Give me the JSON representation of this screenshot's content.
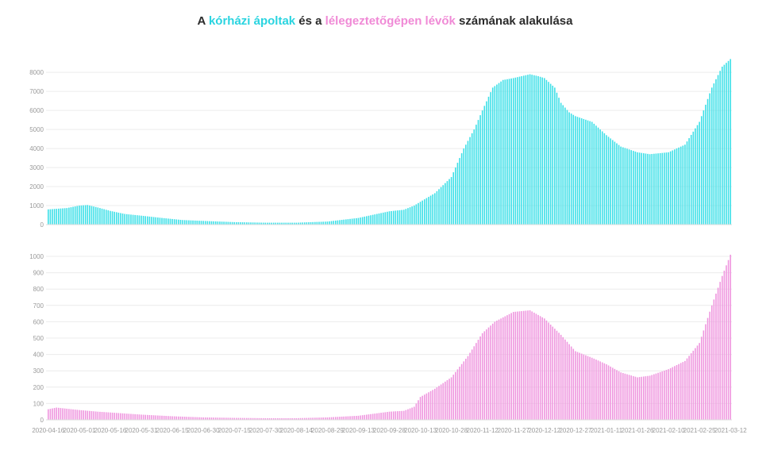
{
  "title": {
    "part1": "A ",
    "highlight1": "kórházi ápoltak",
    "part2": " és a ",
    "highlight2": "lélegeztetőgépen lévők",
    "part3": " számának alakulása"
  },
  "colors": {
    "hospital": "#3fe0e8",
    "ventilator": "#ef97df",
    "grid": "#ececec",
    "tick": "#9a9a9a"
  },
  "chart_data": [
    {
      "type": "bar",
      "series": [
        {
          "name": "kórházi ápoltak",
          "color": "#3fe0e8"
        }
      ],
      "ylim": [
        0,
        8800
      ],
      "yticks": [
        0,
        1000,
        2000,
        3000,
        4000,
        5000,
        6000,
        7000,
        8000
      ],
      "date_range": [
        "2020-04-16",
        "2021-03-12"
      ],
      "grid": true,
      "keypoints": [
        [
          "2020-04-16",
          800
        ],
        [
          "2020-04-25",
          870
        ],
        [
          "2020-05-01",
          1000
        ],
        [
          "2020-05-05",
          1030
        ],
        [
          "2020-05-10",
          900
        ],
        [
          "2020-05-16",
          720
        ],
        [
          "2020-05-23",
          560
        ],
        [
          "2020-05-31",
          470
        ],
        [
          "2020-06-10",
          350
        ],
        [
          "2020-06-20",
          240
        ],
        [
          "2020-07-01",
          190
        ],
        [
          "2020-07-15",
          130
        ],
        [
          "2020-07-30",
          100
        ],
        [
          "2020-08-14",
          100
        ],
        [
          "2020-08-29",
          160
        ],
        [
          "2020-09-13",
          350
        ],
        [
          "2020-09-22",
          560
        ],
        [
          "2020-09-28",
          700
        ],
        [
          "2020-10-05",
          780
        ],
        [
          "2020-10-10",
          1000
        ],
        [
          "2020-10-13",
          1200
        ],
        [
          "2020-10-20",
          1650
        ],
        [
          "2020-10-28",
          2500
        ],
        [
          "2020-11-03",
          4000
        ],
        [
          "2020-11-08",
          5000
        ],
        [
          "2020-11-12",
          6000
        ],
        [
          "2020-11-17",
          7200
        ],
        [
          "2020-11-22",
          7600
        ],
        [
          "2020-11-27",
          7700
        ],
        [
          "2020-12-05",
          7900
        ],
        [
          "2020-12-09",
          7800
        ],
        [
          "2020-12-12",
          7700
        ],
        [
          "2020-12-17",
          7200
        ],
        [
          "2020-12-20",
          6400
        ],
        [
          "2020-12-24",
          5900
        ],
        [
          "2020-12-27",
          5700
        ],
        [
          "2021-01-04",
          5400
        ],
        [
          "2021-01-11",
          4700
        ],
        [
          "2021-01-18",
          4100
        ],
        [
          "2021-01-26",
          3800
        ],
        [
          "2021-02-01",
          3700
        ],
        [
          "2021-02-10",
          3800
        ],
        [
          "2021-02-18",
          4200
        ],
        [
          "2021-02-25",
          5400
        ],
        [
          "2021-03-03",
          7200
        ],
        [
          "2021-03-08",
          8300
        ],
        [
          "2021-03-12",
          8700
        ]
      ]
    },
    {
      "type": "bar",
      "series": [
        {
          "name": "lélegeztetőgépen lévők",
          "color": "#ef97df"
        }
      ],
      "ylim": [
        0,
        1000
      ],
      "yticks": [
        0,
        100,
        200,
        300,
        400,
        500,
        600,
        700,
        800,
        900,
        1000
      ],
      "grid": true,
      "xticks": [
        "2020-04-16",
        "2020-05-01",
        "2020-05-16",
        "2020-05-31",
        "2020-06-15",
        "2020-06-30",
        "2020-07-15",
        "2020-07-30",
        "2020-08-14",
        "2020-08-29",
        "2020-09-13",
        "2020-09-28",
        "2020-10-13",
        "2020-10-28",
        "2020-11-12",
        "2020-11-27",
        "2020-12-12",
        "2020-12-27",
        "2021-01-11",
        "2021-01-26",
        "2021-02-10",
        "2021-02-25",
        "2021-03-12"
      ],
      "keypoints": [
        [
          "2020-04-16",
          65
        ],
        [
          "2020-04-20",
          75
        ],
        [
          "2020-05-01",
          60
        ],
        [
          "2020-05-10",
          50
        ],
        [
          "2020-05-16",
          45
        ],
        [
          "2020-05-31",
          32
        ],
        [
          "2020-06-15",
          22
        ],
        [
          "2020-06-30",
          15
        ],
        [
          "2020-07-15",
          12
        ],
        [
          "2020-07-30",
          10
        ],
        [
          "2020-08-14",
          10
        ],
        [
          "2020-08-29",
          15
        ],
        [
          "2020-09-13",
          25
        ],
        [
          "2020-09-22",
          40
        ],
        [
          "2020-09-28",
          50
        ],
        [
          "2020-10-05",
          55
        ],
        [
          "2020-10-10",
          80
        ],
        [
          "2020-10-13",
          140
        ],
        [
          "2020-10-20",
          190
        ],
        [
          "2020-10-28",
          260
        ],
        [
          "2020-11-05",
          390
        ],
        [
          "2020-11-12",
          530
        ],
        [
          "2020-11-18",
          600
        ],
        [
          "2020-11-27",
          660
        ],
        [
          "2020-12-05",
          670
        ],
        [
          "2020-12-12",
          620
        ],
        [
          "2020-12-20",
          520
        ],
        [
          "2020-12-27",
          420
        ],
        [
          "2021-01-04",
          380
        ],
        [
          "2021-01-11",
          340
        ],
        [
          "2021-01-18",
          290
        ],
        [
          "2021-01-26",
          260
        ],
        [
          "2021-02-01",
          270
        ],
        [
          "2021-02-10",
          310
        ],
        [
          "2021-02-18",
          360
        ],
        [
          "2021-02-25",
          470
        ],
        [
          "2021-03-03",
          700
        ],
        [
          "2021-03-08",
          880
        ],
        [
          "2021-03-12",
          1010
        ]
      ]
    }
  ]
}
